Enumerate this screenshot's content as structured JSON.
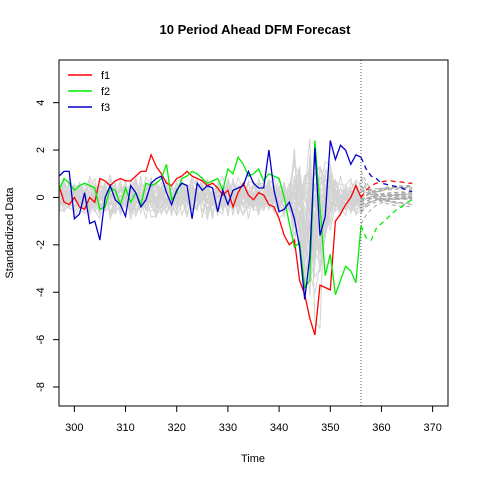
{
  "chart_data": {
    "type": "line",
    "title": "10 Period Ahead DFM Forecast",
    "xlabel": "Time",
    "ylabel": "Standardized Data",
    "xlim": [
      297,
      373
    ],
    "ylim": [
      -8.8,
      5.8
    ],
    "x_ticks": [
      300,
      310,
      320,
      330,
      340,
      350,
      360,
      370
    ],
    "y_ticks": [
      -8,
      -6,
      -4,
      -2,
      0,
      2,
      4
    ],
    "grid": false,
    "legend_position": "top-left",
    "forecast_origin": 356,
    "colors": {
      "f1": "#ff0000",
      "f2": "#00ee00",
      "f3": "#0000cc",
      "background_series": "#d3d3d3",
      "background_forecast": "#a9a9a9",
      "forecast_origin_line": "#555555"
    },
    "series": [
      {
        "name": "f1",
        "color": "#ff0000",
        "x": [
          297,
          298,
          299,
          300,
          301,
          302,
          303,
          304,
          305,
          306,
          307,
          308,
          309,
          310,
          311,
          312,
          313,
          314,
          315,
          316,
          317,
          318,
          319,
          320,
          321,
          322,
          323,
          324,
          325,
          326,
          327,
          328,
          329,
          330,
          331,
          332,
          333,
          334,
          335,
          336,
          337,
          338,
          339,
          340,
          341,
          342,
          343,
          344,
          345,
          346,
          347,
          348,
          349,
          350,
          351,
          352,
          353,
          354,
          355,
          356
        ],
        "values": [
          0.5,
          -0.2,
          -0.3,
          0.0,
          -0.4,
          -0.5,
          0.0,
          -0.2,
          0.8,
          0.7,
          0.5,
          0.7,
          0.8,
          0.7,
          0.7,
          0.9,
          1.1,
          1.1,
          1.8,
          1.3,
          1.0,
          0.6,
          0.5,
          0.8,
          0.9,
          1.1,
          0.9,
          0.8,
          0.7,
          0.5,
          0.6,
          0.4,
          0.1,
          0.3,
          -0.4,
          0.2,
          0.6,
          0.1,
          -0.1,
          0.2,
          0.1,
          -0.3,
          -0.4,
          -0.9,
          -1.6,
          -2.0,
          -1.8,
          -3.5,
          -4.1,
          -5.1,
          -5.8,
          -3.7,
          -3.8,
          -3.9,
          -1.0,
          -0.7,
          -0.3,
          0.0,
          0.5,
          0.0
        ]
      },
      {
        "name": "f2",
        "color": "#00ee00",
        "x": [
          297,
          298,
          299,
          300,
          301,
          302,
          303,
          304,
          305,
          306,
          307,
          308,
          309,
          310,
          311,
          312,
          313,
          314,
          315,
          316,
          317,
          318,
          319,
          320,
          321,
          322,
          323,
          324,
          325,
          326,
          327,
          328,
          329,
          330,
          331,
          332,
          333,
          334,
          335,
          336,
          337,
          338,
          339,
          340,
          341,
          342,
          343,
          344,
          345,
          346,
          347,
          348,
          349,
          350,
          351,
          352,
          353,
          354,
          355,
          356
        ],
        "values": [
          0.3,
          0.8,
          0.6,
          0.3,
          0.5,
          0.6,
          0.5,
          0.4,
          -0.5,
          -0.4,
          0.4,
          0.3,
          -0.3,
          0.4,
          -0.2,
          0.2,
          -0.3,
          0.6,
          0.5,
          0.6,
          0.8,
          1.4,
          -0.1,
          0.2,
          0.8,
          0.9,
          1.1,
          1.0,
          0.8,
          0.6,
          0.7,
          0.8,
          0.3,
          1.2,
          1.0,
          1.7,
          1.4,
          0.9,
          1.0,
          1.2,
          0.7,
          1.0,
          0.9,
          0.8,
          0.0,
          -1.1,
          -2.1,
          -1.9,
          -3.8,
          -3.5,
          2.4,
          -0.4,
          -3.3,
          -2.4,
          -4.1,
          -3.5,
          -2.9,
          -3.1,
          -3.6,
          -1.2
        ]
      },
      {
        "name": "f3",
        "color": "#0000cc",
        "x": [
          297,
          298,
          299,
          300,
          301,
          302,
          303,
          304,
          305,
          306,
          307,
          308,
          309,
          310,
          311,
          312,
          313,
          314,
          315,
          316,
          317,
          318,
          319,
          320,
          321,
          322,
          323,
          324,
          325,
          326,
          327,
          328,
          329,
          330,
          331,
          332,
          333,
          334,
          335,
          336,
          337,
          338,
          339,
          340,
          341,
          342,
          343,
          344,
          345,
          346,
          347,
          348,
          349,
          350,
          351,
          352,
          353,
          354,
          355,
          356
        ],
        "values": [
          0.9,
          1.1,
          1.1,
          -0.9,
          -0.7,
          0.2,
          -1.1,
          -1.0,
          -1.8,
          0.0,
          0.5,
          -0.1,
          -0.3,
          -0.8,
          0.5,
          0.2,
          -0.4,
          -0.1,
          0.6,
          0.8,
          0.9,
          0.2,
          -0.3,
          0.3,
          0.6,
          0.5,
          -0.9,
          0.6,
          0.3,
          0.5,
          0.4,
          -0.6,
          0.3,
          -0.3,
          0.3,
          0.4,
          0.5,
          1.1,
          0.6,
          0.4,
          0.4,
          2.0,
          0.3,
          -0.6,
          -0.5,
          -0.2,
          -0.9,
          -2.1,
          -4.3,
          -2.5,
          2.1,
          -1.6,
          -0.8,
          2.4,
          1.6,
          2.2,
          2.0,
          1.4,
          1.8,
          1.7
        ]
      }
    ],
    "forecasts": [
      {
        "name": "f1",
        "x": [
          356,
          357,
          358,
          359,
          360,
          361,
          362,
          363,
          364,
          365,
          366
        ],
        "values": [
          0.0,
          0.3,
          0.5,
          0.6,
          0.65,
          0.7,
          0.7,
          0.65,
          0.65,
          0.6,
          0.6
        ]
      },
      {
        "name": "f2",
        "x": [
          356,
          357,
          358,
          359,
          360,
          361,
          362,
          363,
          364,
          365,
          366
        ],
        "values": [
          -1.2,
          -1.7,
          -1.8,
          -1.3,
          -1.1,
          -0.9,
          -0.7,
          -0.5,
          -0.4,
          -0.2,
          -0.1
        ]
      },
      {
        "name": "f3",
        "x": [
          356,
          357,
          358,
          359,
          360,
          361,
          362,
          363,
          364,
          365,
          366
        ],
        "values": [
          1.7,
          1.2,
          0.9,
          0.8,
          0.6,
          0.55,
          0.5,
          0.45,
          0.4,
          0.3,
          0.25
        ]
      }
    ],
    "background_series_count": 30,
    "background_forecast_count": 24
  }
}
